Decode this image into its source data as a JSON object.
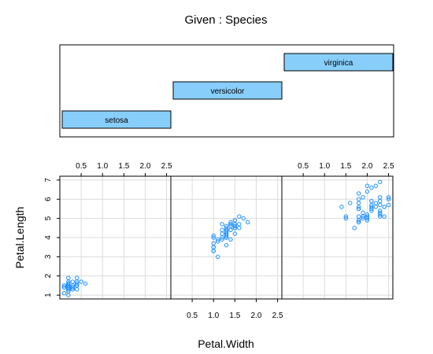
{
  "chart_data": {
    "type": "scatter",
    "subtype": "coplot",
    "title": "Given : Species",
    "xlabel": "Petal.Width",
    "ylabel": "Petal.Length",
    "xlim": [
      0.0,
      2.6
    ],
    "ylim": [
      0.8,
      7.2
    ],
    "x_ticks": [
      0.5,
      1.0,
      1.5,
      2.0,
      2.5
    ],
    "x_tick_labels": [
      "0.5",
      "1.0",
      "1.5",
      "2.0",
      "2.5"
    ],
    "y_ticks": [
      1,
      2,
      3,
      4,
      5,
      6,
      7
    ],
    "y_tick_labels": [
      "1",
      "2",
      "3",
      "4",
      "5",
      "6",
      "7"
    ],
    "grid": true,
    "point_color": "#1e90ff",
    "given_bar_color": "#87cefa",
    "given_levels": [
      "setosa",
      "versicolor",
      "virginica"
    ],
    "panels": [
      {
        "name": "setosa",
        "points": [
          [
            0.2,
            1.4
          ],
          [
            0.2,
            1.4
          ],
          [
            0.2,
            1.3
          ],
          [
            0.2,
            1.5
          ],
          [
            0.2,
            1.4
          ],
          [
            0.4,
            1.7
          ],
          [
            0.3,
            1.4
          ],
          [
            0.2,
            1.5
          ],
          [
            0.2,
            1.4
          ],
          [
            0.1,
            1.5
          ],
          [
            0.2,
            1.5
          ],
          [
            0.2,
            1.6
          ],
          [
            0.1,
            1.4
          ],
          [
            0.1,
            1.1
          ],
          [
            0.2,
            1.2
          ],
          [
            0.4,
            1.5
          ],
          [
            0.4,
            1.3
          ],
          [
            0.3,
            1.4
          ],
          [
            0.3,
            1.7
          ],
          [
            0.3,
            1.5
          ],
          [
            0.2,
            1.7
          ],
          [
            0.4,
            1.5
          ],
          [
            0.2,
            1.0
          ],
          [
            0.5,
            1.7
          ],
          [
            0.2,
            1.9
          ],
          [
            0.2,
            1.6
          ],
          [
            0.4,
            1.6
          ],
          [
            0.2,
            1.5
          ],
          [
            0.2,
            1.4
          ],
          [
            0.2,
            1.6
          ],
          [
            0.2,
            1.6
          ],
          [
            0.4,
            1.5
          ],
          [
            0.1,
            1.5
          ],
          [
            0.2,
            1.4
          ],
          [
            0.2,
            1.5
          ],
          [
            0.2,
            1.2
          ],
          [
            0.2,
            1.3
          ],
          [
            0.1,
            1.4
          ],
          [
            0.2,
            1.3
          ],
          [
            0.2,
            1.5
          ],
          [
            0.3,
            1.3
          ],
          [
            0.3,
            1.3
          ],
          [
            0.2,
            1.3
          ],
          [
            0.6,
            1.6
          ],
          [
            0.4,
            1.9
          ],
          [
            0.3,
            1.4
          ],
          [
            0.2,
            1.6
          ],
          [
            0.2,
            1.4
          ],
          [
            0.2,
            1.5
          ],
          [
            0.2,
            1.4
          ]
        ]
      },
      {
        "name": "versicolor",
        "points": [
          [
            1.4,
            4.7
          ],
          [
            1.5,
            4.5
          ],
          [
            1.5,
            4.9
          ],
          [
            1.3,
            4.0
          ],
          [
            1.5,
            4.6
          ],
          [
            1.3,
            4.5
          ],
          [
            1.6,
            4.7
          ],
          [
            1.0,
            3.3
          ],
          [
            1.3,
            4.6
          ],
          [
            1.4,
            3.9
          ],
          [
            1.0,
            3.5
          ],
          [
            1.5,
            4.2
          ],
          [
            1.0,
            4.0
          ],
          [
            1.4,
            4.7
          ],
          [
            1.3,
            3.6
          ],
          [
            1.4,
            4.4
          ],
          [
            1.5,
            4.5
          ],
          [
            1.0,
            4.1
          ],
          [
            1.5,
            4.5
          ],
          [
            1.1,
            3.9
          ],
          [
            1.8,
            4.8
          ],
          [
            1.3,
            4.0
          ],
          [
            1.5,
            4.9
          ],
          [
            1.2,
            4.7
          ],
          [
            1.3,
            4.3
          ],
          [
            1.4,
            4.4
          ],
          [
            1.4,
            4.8
          ],
          [
            1.7,
            5.0
          ],
          [
            1.5,
            4.5
          ],
          [
            1.0,
            3.5
          ],
          [
            1.1,
            3.8
          ],
          [
            1.0,
            3.7
          ],
          [
            1.2,
            3.9
          ],
          [
            1.6,
            5.1
          ],
          [
            1.5,
            4.5
          ],
          [
            1.6,
            4.5
          ],
          [
            1.5,
            4.7
          ],
          [
            1.3,
            4.4
          ],
          [
            1.3,
            4.1
          ],
          [
            1.3,
            4.0
          ],
          [
            1.2,
            4.4
          ],
          [
            1.4,
            4.6
          ],
          [
            1.2,
            4.0
          ],
          [
            1.0,
            3.3
          ],
          [
            1.3,
            4.2
          ],
          [
            1.2,
            4.2
          ],
          [
            1.3,
            4.2
          ],
          [
            1.3,
            4.3
          ],
          [
            1.1,
            3.0
          ],
          [
            1.3,
            4.1
          ]
        ]
      },
      {
        "name": "virginica",
        "points": [
          [
            2.5,
            6.0
          ],
          [
            1.9,
            5.1
          ],
          [
            2.1,
            5.9
          ],
          [
            1.8,
            5.6
          ],
          [
            2.2,
            5.8
          ],
          [
            2.1,
            6.6
          ],
          [
            1.7,
            4.5
          ],
          [
            1.8,
            6.3
          ],
          [
            1.8,
            5.8
          ],
          [
            2.5,
            6.1
          ],
          [
            2.0,
            5.1
          ],
          [
            1.9,
            5.3
          ],
          [
            2.1,
            5.5
          ],
          [
            2.0,
            5.0
          ],
          [
            2.4,
            5.1
          ],
          [
            2.3,
            5.3
          ],
          [
            1.8,
            5.5
          ],
          [
            2.2,
            6.7
          ],
          [
            2.3,
            6.9
          ],
          [
            1.5,
            5.0
          ],
          [
            2.3,
            5.7
          ],
          [
            2.0,
            4.9
          ],
          [
            2.0,
            6.7
          ],
          [
            1.8,
            4.9
          ],
          [
            2.1,
            5.7
          ],
          [
            1.8,
            6.0
          ],
          [
            1.8,
            4.8
          ],
          [
            1.8,
            4.9
          ],
          [
            2.1,
            5.6
          ],
          [
            1.6,
            5.8
          ],
          [
            1.9,
            6.1
          ],
          [
            2.0,
            6.4
          ],
          [
            2.2,
            5.6
          ],
          [
            1.5,
            5.1
          ],
          [
            1.4,
            5.6
          ],
          [
            2.3,
            6.1
          ],
          [
            2.4,
            5.6
          ],
          [
            1.8,
            5.5
          ],
          [
            1.8,
            4.8
          ],
          [
            2.1,
            5.4
          ],
          [
            2.4,
            5.6
          ],
          [
            2.3,
            5.1
          ],
          [
            1.9,
            5.1
          ],
          [
            2.3,
            5.9
          ],
          [
            2.5,
            5.7
          ],
          [
            2.3,
            5.2
          ],
          [
            1.9,
            5.0
          ],
          [
            2.0,
            5.2
          ],
          [
            2.3,
            5.4
          ],
          [
            1.8,
            5.1
          ]
        ]
      }
    ]
  }
}
